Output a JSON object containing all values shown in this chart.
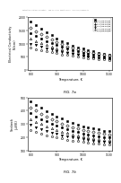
{
  "header": "Patent Application Publication     Feb. 11, 2021  Sheet 5 of 11    US 2021/0028328 A1",
  "fig_a_label": "FIG. 7a",
  "fig_b_label": "FIG. 7b",
  "ylabel_a": "Electrical Conductivity\n(S/cm)",
  "ylabel_b": "Seebeck\n(μV/K)",
  "xlabel": "Temperature, K",
  "xlim": [
    790,
    1110
  ],
  "ylim_a": [
    0,
    2000
  ],
  "ylim_b": [
    100,
    500
  ],
  "yticks_a": [
    0,
    500,
    1000,
    1500,
    2000
  ],
  "yticks_b": [
    100,
    200,
    300,
    400,
    500
  ],
  "xticks": [
    800,
    900,
    1000,
    1100
  ],
  "legend_entries": [
    "0.0 (Ge,Pb)Te",
    "1.0 (Ge,Pb)Te",
    "2.0 (Ge,Pb)Te",
    "3.0 (Ge,Pb)Te",
    "4.0 (Ge,Pb)Te",
    "5.0 (Ge,Pb)Te"
  ],
  "markers": [
    "s",
    "D",
    "o",
    "^",
    "v",
    "p"
  ],
  "fill": [
    true,
    false,
    true,
    false,
    true,
    false
  ],
  "temps_a": [
    800,
    820,
    840,
    860,
    880,
    900,
    920,
    940,
    960,
    980,
    1000,
    1020,
    1040,
    1060,
    1080,
    1100
  ],
  "series_a": [
    [
      1850,
      1700,
      1560,
      1430,
      1310,
      1200,
      1100,
      1010,
      930,
      860,
      800,
      750,
      700,
      660,
      620,
      590
    ],
    [
      1600,
      1470,
      1360,
      1250,
      1150,
      1060,
      980,
      900,
      840,
      780,
      730,
      680,
      640,
      600,
      570,
      540
    ],
    [
      1380,
      1280,
      1190,
      1100,
      1020,
      945,
      875,
      810,
      755,
      705,
      658,
      617,
      580,
      547,
      518,
      492
    ],
    [
      1180,
      1100,
      1025,
      955,
      890,
      830,
      773,
      720,
      673,
      630,
      592,
      557,
      526,
      498,
      473,
      450
    ],
    [
      1000,
      940,
      880,
      825,
      773,
      724,
      679,
      638,
      600,
      565,
      533,
      504,
      477,
      453,
      430,
      410
    ],
    [
      840,
      795,
      750,
      707,
      667,
      630,
      595,
      562,
      532,
      504,
      478,
      454,
      432,
      412,
      393,
      376
    ]
  ],
  "temps_b": [
    800,
    820,
    840,
    860,
    880,
    900,
    920,
    940,
    960,
    980,
    1000,
    1020,
    1040,
    1060,
    1080,
    1100
  ],
  "series_b": [
    [
      470,
      445,
      420,
      397,
      376,
      357,
      340,
      324,
      309,
      296,
      284,
      274,
      265,
      257,
      250,
      244
    ],
    [
      425,
      400,
      378,
      357,
      338,
      320,
      304,
      290,
      277,
      265,
      255,
      246,
      238,
      231,
      225,
      219
    ],
    [
      380,
      358,
      337,
      319,
      302,
      286,
      272,
      259,
      248,
      238,
      229,
      221,
      214,
      208,
      202,
      197
    ],
    [
      335,
      316,
      298,
      282,
      268,
      254,
      242,
      231,
      222,
      213,
      206,
      199,
      193,
      187,
      182,
      178
    ],
    [
      292,
      276,
      261,
      248,
      235,
      224,
      214,
      205,
      197,
      190,
      183,
      178,
      173,
      168,
      164,
      160
    ],
    [
      252,
      239,
      227,
      216,
      206,
      197,
      189,
      182,
      175,
      169,
      164,
      159,
      155,
      151,
      148,
      145
    ]
  ],
  "background": "#ffffff",
  "plot_bg": "#ffffff"
}
